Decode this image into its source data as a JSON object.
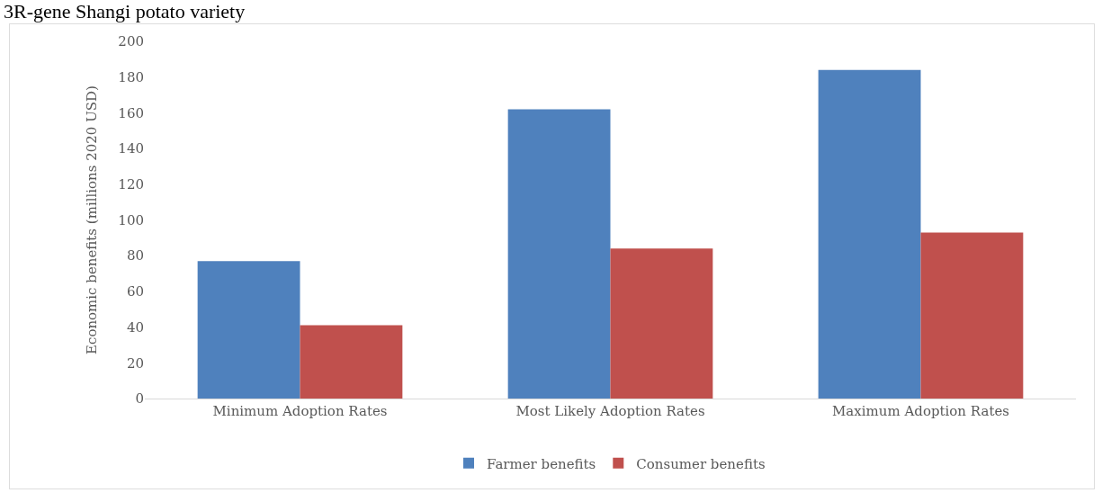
{
  "chart_data": {
    "type": "bar",
    "title": "3R-gene Shangi potato variety",
    "ylabel": "Economic benefits (millions 2020 USD)",
    "categories": [
      "Minimum Adoption Rates",
      "Most Likely Adoption Rates",
      "Maximum Adoption Rates"
    ],
    "series": [
      {
        "name": "Farmer benefits",
        "color": "#4f81bd",
        "values": [
          77,
          162,
          184
        ]
      },
      {
        "name": "Consumer benefits",
        "color": "#c0504d",
        "values": [
          41,
          84,
          93
        ]
      }
    ],
    "ylim": [
      0,
      200
    ],
    "yticks": [
      0,
      20,
      40,
      60,
      80,
      100,
      120,
      140,
      160,
      180,
      200
    ],
    "grid": false,
    "legend": "bottom"
  }
}
